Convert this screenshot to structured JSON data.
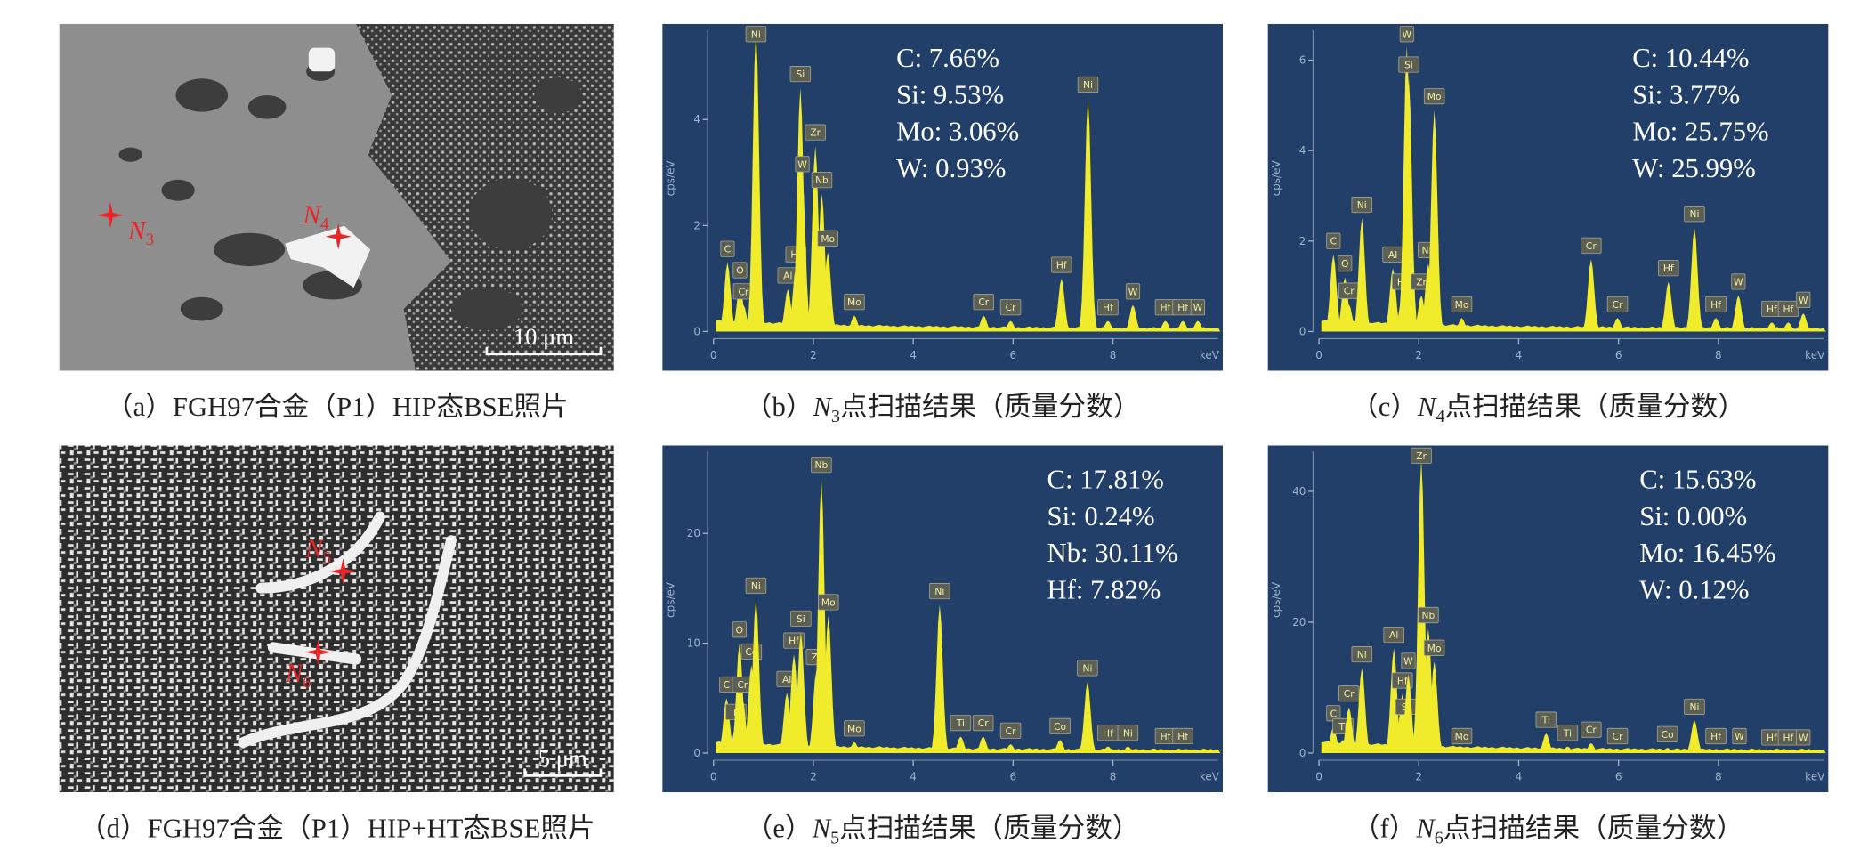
{
  "panels": [
    {
      "type": "micrograph",
      "markers": [
        {
          "symbol": "N",
          "subscript": "3"
        },
        {
          "symbol": "N",
          "subscript": "4"
        }
      ],
      "scale_bar": "10 μm",
      "caption": {
        "label": "（a）",
        "text": "FGH97合金（P1）HIP态BSE照片"
      }
    },
    {
      "type": "spectrum",
      "color": "#f0ec2c",
      "background": "#213f68",
      "xlabel": "keV",
      "ylabel": "cps/eV",
      "xlim": [
        0,
        10.2
      ],
      "ylim": [
        0,
        5.8
      ],
      "xticks": [
        0,
        2,
        4,
        6,
        8
      ],
      "yticks": [
        0,
        2,
        4
      ],
      "composition": [
        "C: 7.66%",
        "Si: 9.53%",
        "Mo: 3.06%",
        "W: 0.93%"
      ],
      "peaks": [
        {
          "label": "C",
          "x": 0.28,
          "y": 1.3
        },
        {
          "label": "O",
          "x": 0.53,
          "y": 0.9
        },
        {
          "label": "Cr",
          "x": 0.6,
          "y": 0.5
        },
        {
          "label": "Ni",
          "x": 0.85,
          "y": 5.7
        },
        {
          "label": "Al",
          "x": 1.49,
          "y": 0.8
        },
        {
          "label": "Hf",
          "x": 1.65,
          "y": 1.2
        },
        {
          "label": "Si",
          "x": 1.74,
          "y": 4.6
        },
        {
          "label": "W",
          "x": 1.78,
          "y": 2.9
        },
        {
          "label": "Zr",
          "x": 2.04,
          "y": 3.5
        },
        {
          "label": "Nb",
          "x": 2.17,
          "y": 2.6
        },
        {
          "label": "Mo",
          "x": 2.29,
          "y": 1.5
        },
        {
          "label": "Mo",
          "x": 2.82,
          "y": 0.3
        },
        {
          "label": "Cr",
          "x": 5.41,
          "y": 0.3
        },
        {
          "label": "Cr",
          "x": 5.95,
          "y": 0.2
        },
        {
          "label": "Hf",
          "x": 6.97,
          "y": 1.0
        },
        {
          "label": "Ni",
          "x": 7.5,
          "y": 4.4
        },
        {
          "label": "Hf",
          "x": 7.9,
          "y": 0.2
        },
        {
          "label": "W",
          "x": 8.4,
          "y": 0.5
        },
        {
          "label": "Hf",
          "x": 9.05,
          "y": 0.2
        },
        {
          "label": "Hf",
          "x": 9.4,
          "y": 0.2
        },
        {
          "label": "W",
          "x": 9.7,
          "y": 0.2
        }
      ],
      "caption": {
        "label": "（b）",
        "symbol": "N",
        "subscript": "3",
        "text": "点扫描结果（质量分数）"
      }
    },
    {
      "type": "spectrum",
      "color": "#f0ec2c",
      "background": "#213f68",
      "xlabel": "keV",
      "ylabel": "cps/eV",
      "xlim": [
        0,
        10.2
      ],
      "ylim": [
        0,
        6.8
      ],
      "xticks": [
        0,
        2,
        4,
        6,
        8
      ],
      "yticks": [
        0,
        2,
        4,
        6
      ],
      "composition": [
        "C: 10.44%",
        "Si: 3.77%",
        "Mo: 25.75%",
        "W: 25.99%"
      ],
      "peaks": [
        {
          "label": "C",
          "x": 0.29,
          "y": 1.7
        },
        {
          "label": "O",
          "x": 0.52,
          "y": 1.2
        },
        {
          "label": "Cr",
          "x": 0.6,
          "y": 0.6
        },
        {
          "label": "Ni",
          "x": 0.86,
          "y": 2.5
        },
        {
          "label": "Al",
          "x": 1.48,
          "y": 1.4
        },
        {
          "label": "Hf",
          "x": 1.67,
          "y": 0.8
        },
        {
          "label": "W",
          "x": 1.76,
          "y": 6.3
        },
        {
          "label": "Si",
          "x": 1.8,
          "y": 5.6
        },
        {
          "label": "Zr",
          "x": 2.05,
          "y": 0.8
        },
        {
          "label": "Nb",
          "x": 2.19,
          "y": 1.5
        },
        {
          "label": "Mo",
          "x": 2.31,
          "y": 4.9
        },
        {
          "label": "Mo",
          "x": 2.86,
          "y": 0.3
        },
        {
          "label": "Cr",
          "x": 5.45,
          "y": 1.6
        },
        {
          "label": "Cr",
          "x": 5.98,
          "y": 0.3
        },
        {
          "label": "Hf",
          "x": 7.0,
          "y": 1.1
        },
        {
          "label": "Ni",
          "x": 7.52,
          "y": 2.3
        },
        {
          "label": "Hf",
          "x": 7.95,
          "y": 0.3
        },
        {
          "label": "W",
          "x": 8.4,
          "y": 0.8
        },
        {
          "label": "Hf",
          "x": 9.07,
          "y": 0.2
        },
        {
          "label": "Hf",
          "x": 9.4,
          "y": 0.2
        },
        {
          "label": "W",
          "x": 9.7,
          "y": 0.4
        }
      ],
      "caption": {
        "label": "（c）",
        "symbol": "N",
        "subscript": "4",
        "text": "点扫描结果（质量分数）"
      }
    },
    {
      "type": "micrograph",
      "markers": [
        {
          "symbol": "N",
          "subscript": "5"
        },
        {
          "symbol": "N",
          "subscript": "6"
        }
      ],
      "scale_bar": "5 μm",
      "caption": {
        "label": "（d）",
        "text": "FGH97合金（P1）HIP+HT态BSE照片"
      }
    },
    {
      "type": "spectrum",
      "color": "#f0ec2c",
      "background": "#213f68",
      "xlabel": "keV",
      "ylabel": "cps/eV",
      "xlim": [
        0,
        10.2
      ],
      "ylim": [
        0,
        28
      ],
      "xticks": [
        0,
        2,
        4,
        6,
        8
      ],
      "yticks": [
        0,
        10,
        20
      ],
      "composition": [
        "C: 17.81%",
        "Si: 0.24%",
        "Nb: 30.11%",
        "Hf: 7.82%"
      ],
      "peaks": [
        {
          "label": "C",
          "x": 0.26,
          "y": 5
        },
        {
          "label": "Ti",
          "x": 0.45,
          "y": 2.5
        },
        {
          "label": "O",
          "x": 0.52,
          "y": 10
        },
        {
          "label": "Cr",
          "x": 0.58,
          "y": 5
        },
        {
          "label": "Co",
          "x": 0.76,
          "y": 8
        },
        {
          "label": "Ni",
          "x": 0.85,
          "y": 14
        },
        {
          "label": "Al",
          "x": 1.47,
          "y": 5.5
        },
        {
          "label": "Hf",
          "x": 1.61,
          "y": 9
        },
        {
          "label": "Si",
          "x": 1.75,
          "y": 11
        },
        {
          "label": "Zr",
          "x": 2.06,
          "y": 7.5
        },
        {
          "label": "Nb",
          "x": 2.16,
          "y": 25
        },
        {
          "label": "Mo",
          "x": 2.3,
          "y": 12.5
        },
        {
          "label": "Mo",
          "x": 2.82,
          "y": 1
        },
        {
          "label": "Ni",
          "x": 4.53,
          "y": 13.5
        },
        {
          "label": "Ti",
          "x": 4.95,
          "y": 1.5
        },
        {
          "label": "Cr",
          "x": 5.4,
          "y": 1.5
        },
        {
          "label": "Cr",
          "x": 5.95,
          "y": 0.8
        },
        {
          "label": "Co",
          "x": 6.94,
          "y": 1.2
        },
        {
          "label": "Ni",
          "x": 7.49,
          "y": 6.5
        },
        {
          "label": "Hf",
          "x": 7.9,
          "y": 0.6
        },
        {
          "label": "Ni",
          "x": 8.3,
          "y": 0.6
        },
        {
          "label": "Hf",
          "x": 9.05,
          "y": 0.3
        },
        {
          "label": "Hf",
          "x": 9.4,
          "y": 0.3
        }
      ],
      "caption": {
        "label": "（e）",
        "symbol": "N",
        "subscript": "5",
        "text": "点扫描结果（质量分数）"
      }
    },
    {
      "type": "spectrum",
      "color": "#f0ec2c",
      "background": "#213f68",
      "xlabel": "keV",
      "ylabel": "cps/eV",
      "xlim": [
        0,
        10.2
      ],
      "ylim": [
        0,
        47
      ],
      "xticks": [
        0,
        2,
        4,
        6,
        8
      ],
      "yticks": [
        0,
        20,
        40
      ],
      "composition": [
        "C: 15.63%",
        "Si: 0.00%",
        "Mo: 16.45%",
        "W: 0.12%"
      ],
      "peaks": [
        {
          "label": "C",
          "x": 0.29,
          "y": 4
        },
        {
          "label": "Ti",
          "x": 0.48,
          "y": 2
        },
        {
          "label": "Cr",
          "x": 0.6,
          "y": 7
        },
        {
          "label": "Ni",
          "x": 0.86,
          "y": 13
        },
        {
          "label": "Al",
          "x": 1.5,
          "y": 16
        },
        {
          "label": "Hf",
          "x": 1.67,
          "y": 9
        },
        {
          "label": "Si",
          "x": 1.74,
          "y": 5
        },
        {
          "label": "W",
          "x": 1.79,
          "y": 12
        },
        {
          "label": "Zr",
          "x": 2.05,
          "y": 45
        },
        {
          "label": "Nb",
          "x": 2.19,
          "y": 19
        },
        {
          "label": "Mo",
          "x": 2.31,
          "y": 14
        },
        {
          "label": "Mo",
          "x": 2.86,
          "y": 0.5
        },
        {
          "label": "Ti",
          "x": 4.55,
          "y": 3
        },
        {
          "label": "Ti",
          "x": 4.98,
          "y": 1
        },
        {
          "label": "Cr",
          "x": 5.45,
          "y": 1.5
        },
        {
          "label": "Cr",
          "x": 5.98,
          "y": 0.5
        },
        {
          "label": "Co",
          "x": 6.98,
          "y": 0.8
        },
        {
          "label": "Ni",
          "x": 7.52,
          "y": 5
        },
        {
          "label": "Hf",
          "x": 7.95,
          "y": 0.5
        },
        {
          "label": "W",
          "x": 8.42,
          "y": 0.5
        },
        {
          "label": "Hf",
          "x": 9.07,
          "y": 0.3
        },
        {
          "label": "Hf",
          "x": 9.4,
          "y": 0.3
        },
        {
          "label": "W",
          "x": 9.7,
          "y": 0.3
        }
      ],
      "caption": {
        "label": "（f）",
        "symbol": "N",
        "subscript": "6",
        "text": "点扫描结果（质量分数）"
      }
    }
  ]
}
